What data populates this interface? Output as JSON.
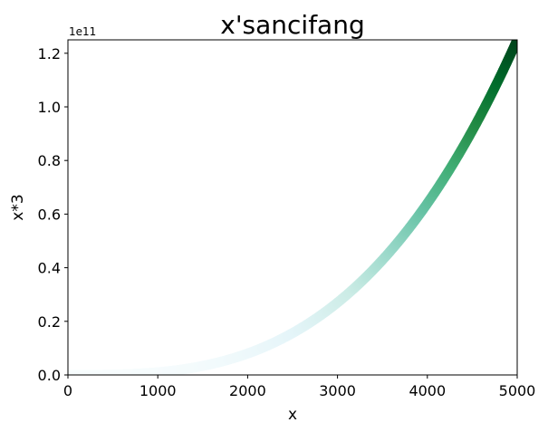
{
  "chart_data": {
    "type": "scatter",
    "title": "x'sancifang",
    "xlabel": "x",
    "ylabel": "x*3",
    "xlim": [
      0,
      5000
    ],
    "ylim": [
      0,
      125000000000.0
    ],
    "x_ticks": [
      0,
      1000,
      2000,
      3000,
      4000,
      5000
    ],
    "x_tick_labels": [
      "0",
      "1000",
      "2000",
      "3000",
      "4000",
      "5000"
    ],
    "y_ticks": [
      0,
      20000000000.0,
      40000000000.0,
      60000000000.0,
      80000000000.0,
      100000000000.0,
      120000000000.0
    ],
    "y_tick_labels": [
      "0.0",
      "0.2",
      "0.4",
      "0.6",
      "0.8",
      "1.0",
      "1.2"
    ],
    "y_offset_label": "1e11",
    "grid": false,
    "colormap": "BuGn",
    "series": [
      {
        "x_start": 1,
        "x_end": 5000,
        "y_formula": "x^3",
        "color_by": "y"
      }
    ]
  }
}
